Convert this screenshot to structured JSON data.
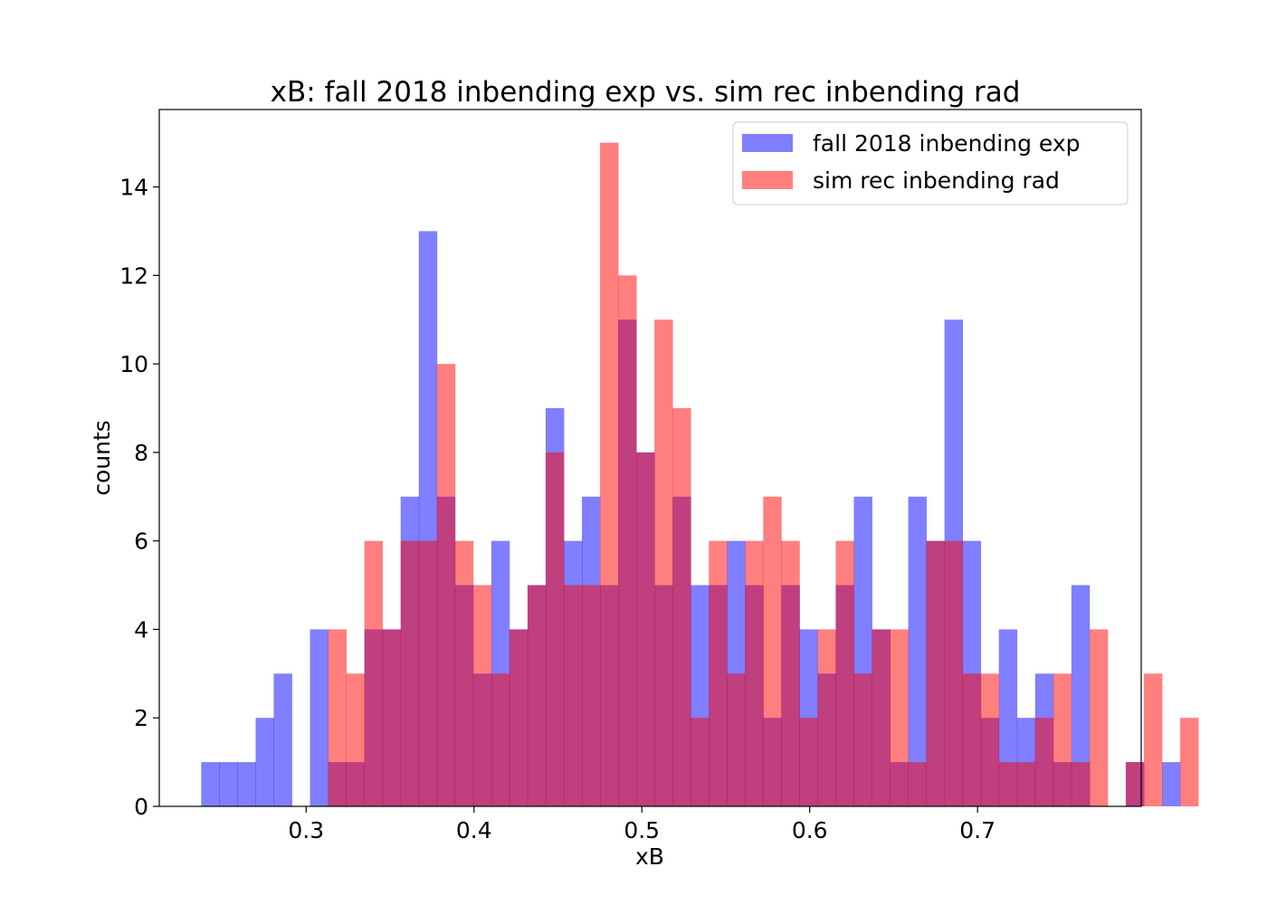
{
  "chart_data": {
    "type": "bar",
    "title": "xB: fall 2018 inbending exp  vs. sim rec inbending rad",
    "xlabel": "xB",
    "ylabel": "counts",
    "xlim": [
      0.2125,
      0.7975
    ],
    "ylim": [
      0,
      15.75
    ],
    "x_ticks": [
      "0.3",
      "0.4",
      "0.5",
      "0.6",
      "0.7"
    ],
    "x_tick_values": [
      0.3,
      0.4,
      0.5,
      0.6,
      0.7
    ],
    "y_ticks": [
      "0",
      "2",
      "4",
      "6",
      "8",
      "10",
      "12",
      "14"
    ],
    "y_tick_values": [
      0,
      2,
      4,
      6,
      8,
      10,
      12,
      14
    ],
    "grid": false,
    "legend_position": "top-right",
    "bin_start": 0.2375,
    "bin_width": 0.0108,
    "series": [
      {
        "name": "fall 2018 inbending exp",
        "color": "#0000ff",
        "opacity": 0.5,
        "values": [
          1,
          1,
          1,
          2,
          3,
          0,
          4,
          1,
          1,
          4,
          4,
          7,
          13,
          7,
          5,
          3,
          6,
          4,
          5,
          9,
          6,
          7,
          5,
          11,
          8,
          5,
          7,
          5,
          5,
          6,
          5,
          2,
          5,
          4,
          3,
          5,
          7,
          4,
          1,
          7,
          6,
          11,
          6,
          2,
          4,
          2,
          3,
          1,
          5,
          0,
          0,
          1,
          0,
          1
        ]
      },
      {
        "name": "sim rec inbending rad",
        "color": "#ff0000",
        "opacity": 0.5,
        "values": [
          0,
          0,
          0,
          0,
          0,
          0,
          0,
          4,
          3,
          6,
          4,
          6,
          6,
          10,
          6,
          5,
          3,
          4,
          5,
          8,
          5,
          5,
          15,
          12,
          8,
          11,
          9,
          2,
          6,
          3,
          6,
          7,
          6,
          2,
          4,
          6,
          3,
          4,
          4,
          1,
          6,
          6,
          3,
          3,
          1,
          1,
          2,
          3,
          1,
          4,
          0,
          1,
          3,
          0,
          2
        ]
      }
    ]
  }
}
